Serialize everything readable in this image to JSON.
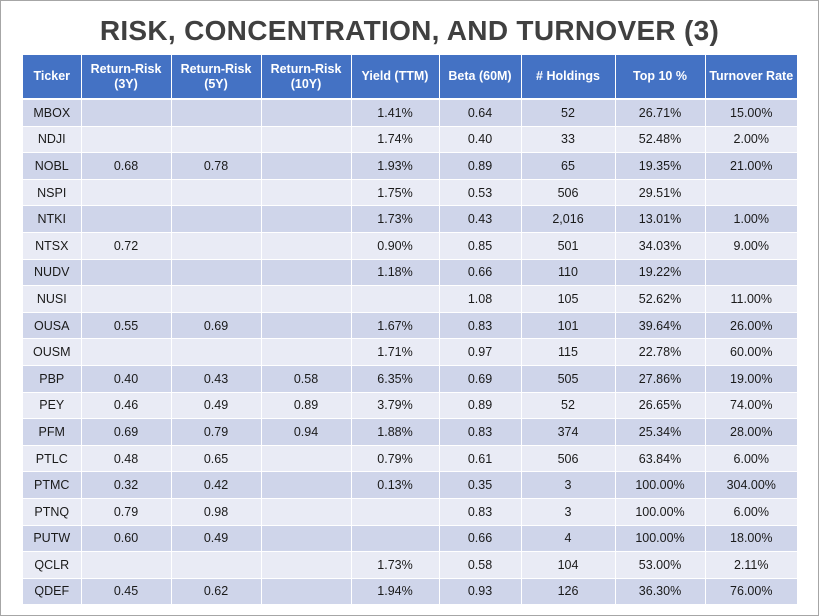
{
  "title": "RISK, CONCENTRATION, AND TURNOVER (3)",
  "columns": [
    {
      "line1": "Ticker",
      "line2": ""
    },
    {
      "line1": "Return-Risk",
      "line2": "(3Y)"
    },
    {
      "line1": "Return-Risk",
      "line2": "(5Y)"
    },
    {
      "line1": "Return-Risk",
      "line2": "(10Y)"
    },
    {
      "line1": "Yield (TTM)",
      "line2": ""
    },
    {
      "line1": "Beta (60M)",
      "line2": ""
    },
    {
      "line1": "# Holdings",
      "line2": ""
    },
    {
      "line1": "Top 10 %",
      "line2": ""
    },
    {
      "line1": "Turnover Rate",
      "line2": ""
    }
  ],
  "rows": [
    [
      "MBOX",
      "",
      "",
      "",
      "1.41%",
      "0.64",
      "52",
      "26.71%",
      "15.00%"
    ],
    [
      "NDJI",
      "",
      "",
      "",
      "1.74%",
      "0.40",
      "33",
      "52.48%",
      "2.00%"
    ],
    [
      "NOBL",
      "0.68",
      "0.78",
      "",
      "1.93%",
      "0.89",
      "65",
      "19.35%",
      "21.00%"
    ],
    [
      "NSPI",
      "",
      "",
      "",
      "1.75%",
      "0.53",
      "506",
      "29.51%",
      ""
    ],
    [
      "NTKI",
      "",
      "",
      "",
      "1.73%",
      "0.43",
      "2,016",
      "13.01%",
      "1.00%"
    ],
    [
      "NTSX",
      "0.72",
      "",
      "",
      "0.90%",
      "0.85",
      "501",
      "34.03%",
      "9.00%"
    ],
    [
      "NUDV",
      "",
      "",
      "",
      "1.18%",
      "0.66",
      "110",
      "19.22%",
      ""
    ],
    [
      "NUSI",
      "",
      "",
      "",
      "",
      "1.08",
      "105",
      "52.62%",
      "11.00%"
    ],
    [
      "OUSA",
      "0.55",
      "0.69",
      "",
      "1.67%",
      "0.83",
      "101",
      "39.64%",
      "26.00%"
    ],
    [
      "OUSM",
      "",
      "",
      "",
      "1.71%",
      "0.97",
      "115",
      "22.78%",
      "60.00%"
    ],
    [
      "PBP",
      "0.40",
      "0.43",
      "0.58",
      "6.35%",
      "0.69",
      "505",
      "27.86%",
      "19.00%"
    ],
    [
      "PEY",
      "0.46",
      "0.49",
      "0.89",
      "3.79%",
      "0.89",
      "52",
      "26.65%",
      "74.00%"
    ],
    [
      "PFM",
      "0.69",
      "0.79",
      "0.94",
      "1.88%",
      "0.83",
      "374",
      "25.34%",
      "28.00%"
    ],
    [
      "PTLC",
      "0.48",
      "0.65",
      "",
      "0.79%",
      "0.61",
      "506",
      "63.84%",
      "6.00%"
    ],
    [
      "PTMC",
      "0.32",
      "0.42",
      "",
      "0.13%",
      "0.35",
      "3",
      "100.00%",
      "304.00%"
    ],
    [
      "PTNQ",
      "0.79",
      "0.98",
      "",
      "",
      "0.83",
      "3",
      "100.00%",
      "6.00%"
    ],
    [
      "PUTW",
      "0.60",
      "0.49",
      "",
      "",
      "0.66",
      "4",
      "100.00%",
      "18.00%"
    ],
    [
      "QCLR",
      "",
      "",
      "",
      "1.73%",
      "0.58",
      "104",
      "53.00%",
      "2.11%"
    ],
    [
      "QDEF",
      "0.45",
      "0.62",
      "",
      "1.94%",
      "0.93",
      "126",
      "36.30%",
      "76.00%"
    ]
  ]
}
